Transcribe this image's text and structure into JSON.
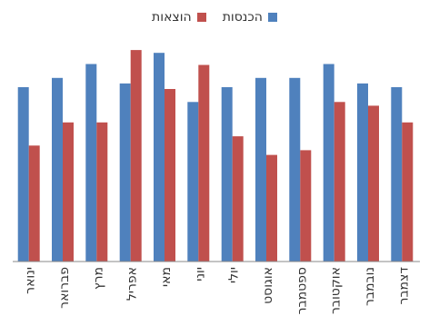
{
  "chart_data": {
    "type": "bar",
    "categories": [
      "ינואר",
      "פברואר",
      "מרץ",
      "אפריל",
      "מאי",
      "יוני",
      "יולי",
      "אוגוסט",
      "ספטמבר",
      "אוקטובר",
      "נובמבר",
      "דצמבר"
    ],
    "series": [
      {
        "name": "הכנסות",
        "color": "#4f81bd",
        "values": [
          188,
          198,
          213,
          192,
          225,
          172,
          188,
          198,
          198,
          213,
          192,
          188
        ]
      },
      {
        "name": "הוצאות",
        "color": "#c0504d",
        "values": [
          125,
          150,
          150,
          228,
          186,
          212,
          135,
          115,
          120,
          172,
          168,
          150
        ]
      }
    ],
    "ylim": [
      0,
      235
    ],
    "legend_position": "top",
    "grid": false
  }
}
